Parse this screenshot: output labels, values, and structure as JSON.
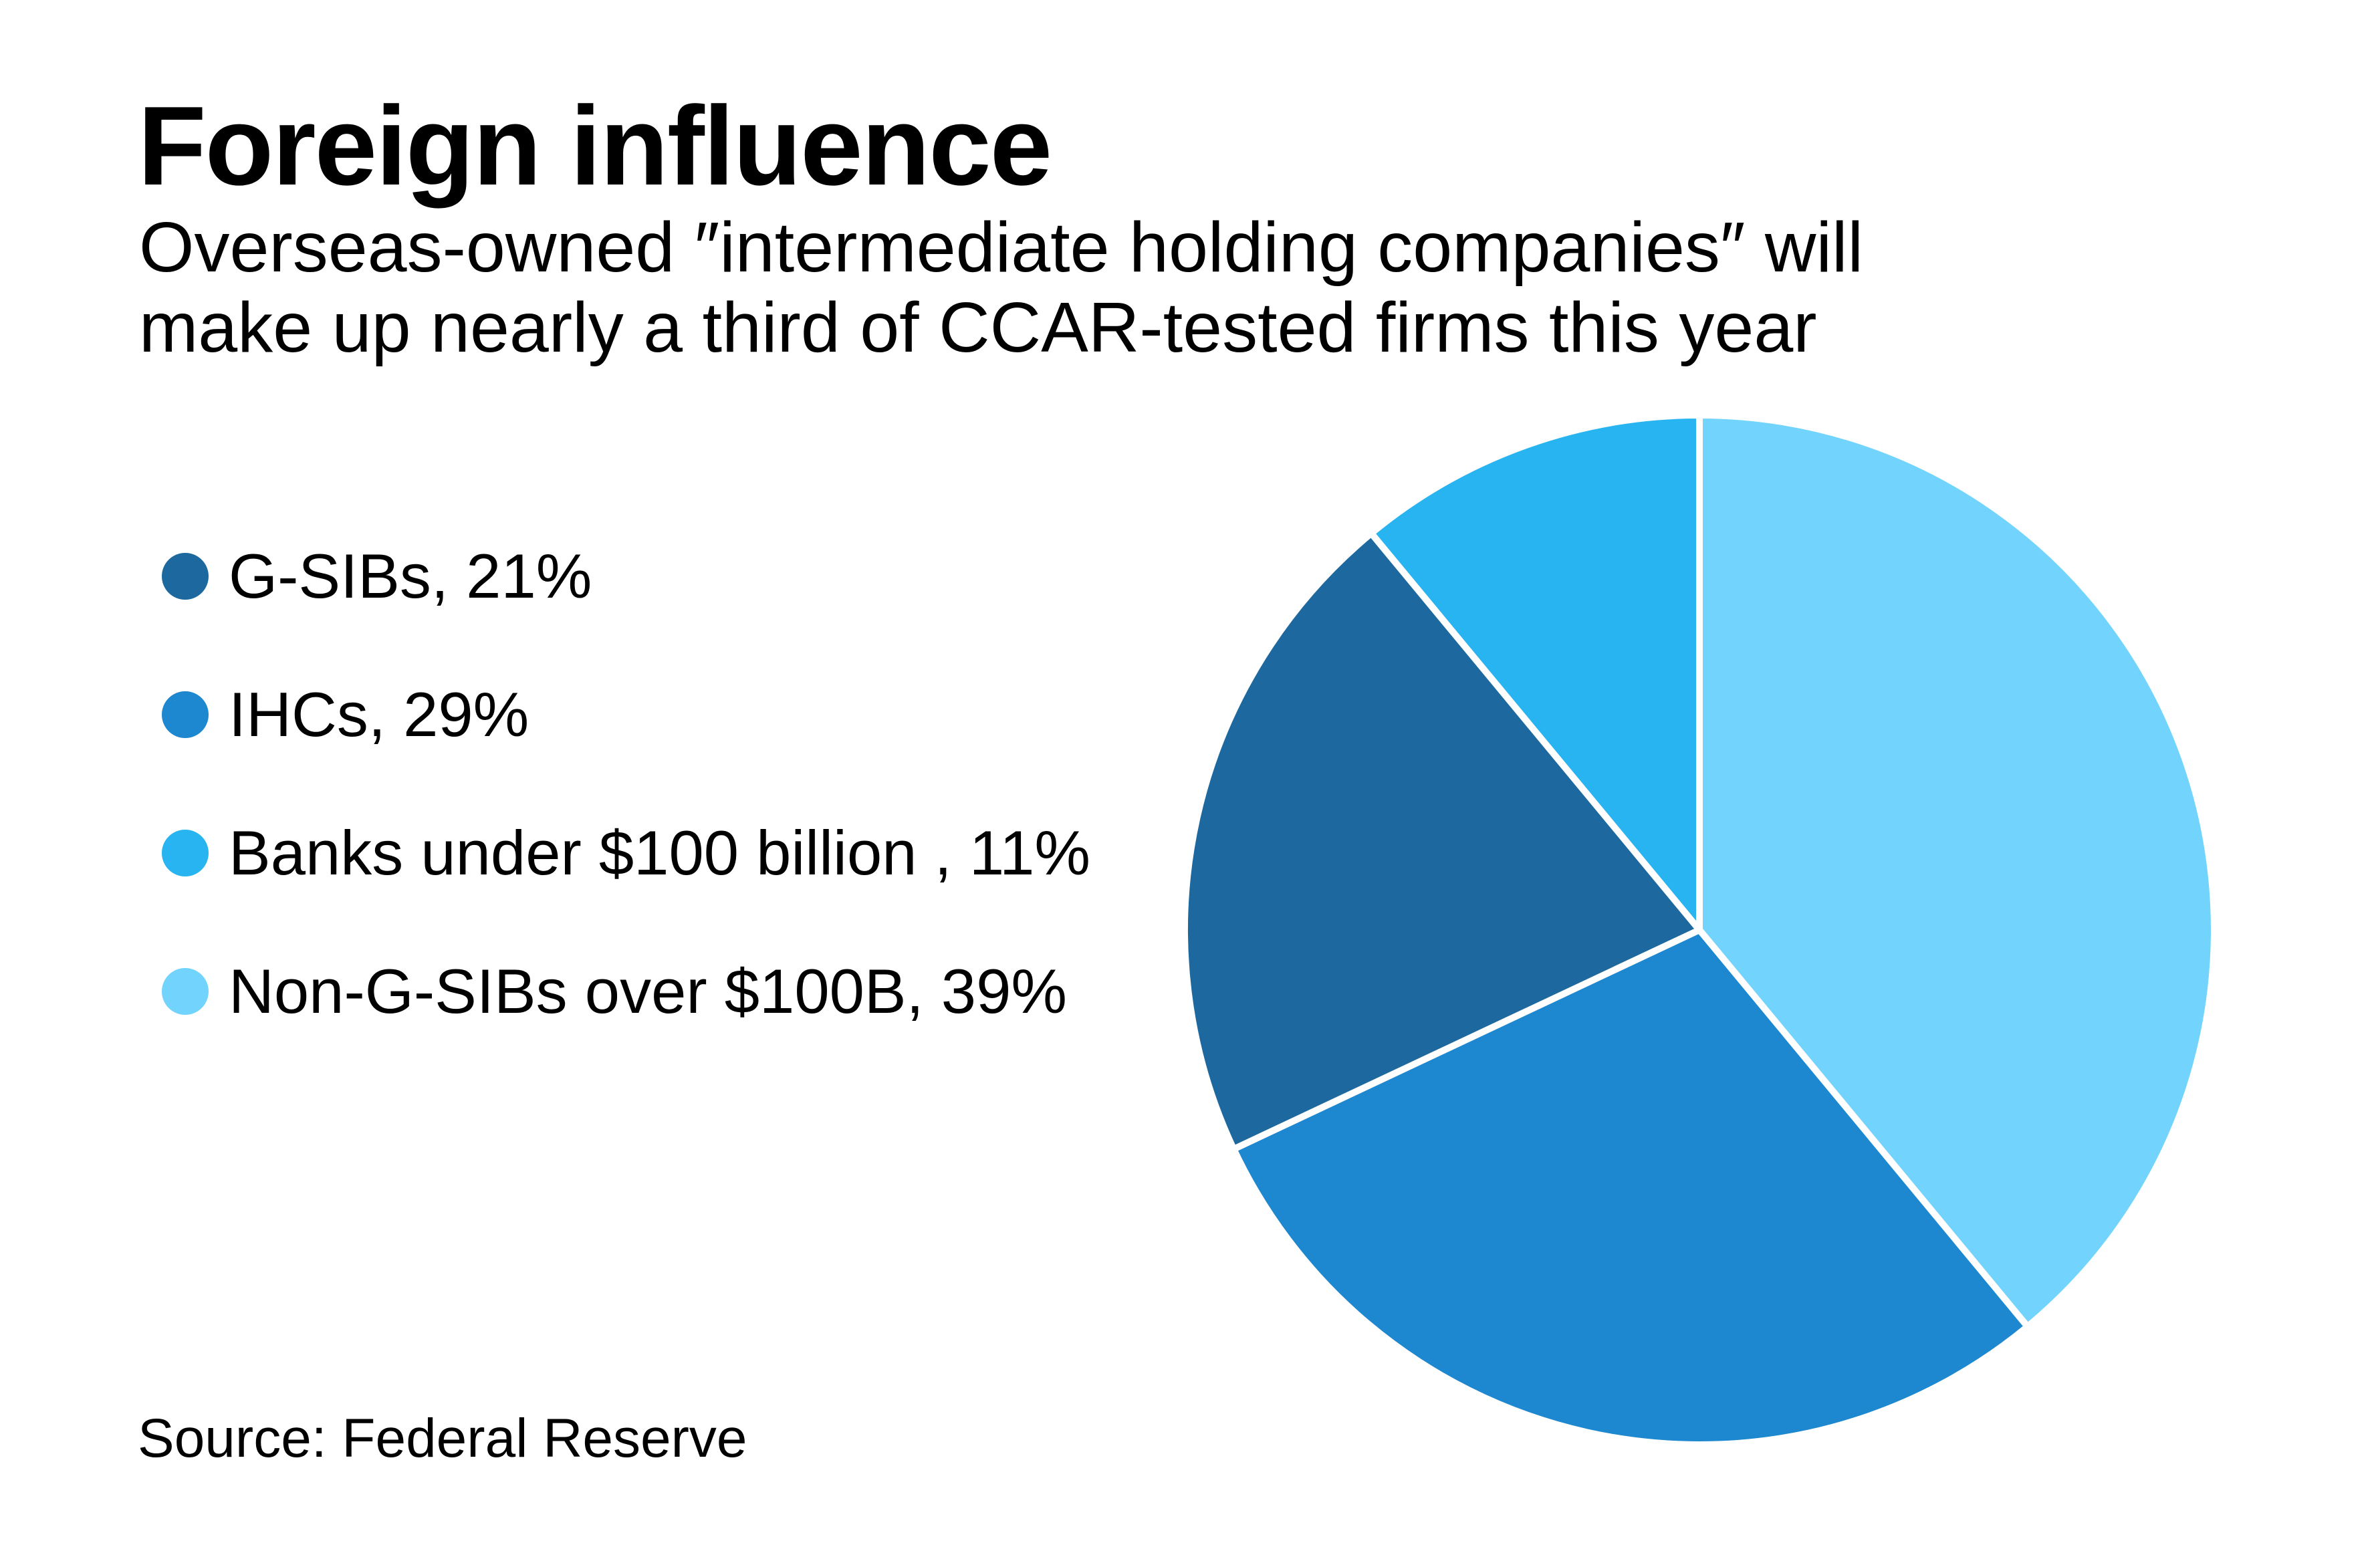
{
  "header": {
    "title": "Foreign influence",
    "subtitle_lines": [
      "Overseas-owned ″intermediate holding companies″ will",
      "make up nearly a third of CCAR-tested firms this year"
    ]
  },
  "footer": {
    "source": "Source: Federal Reserve"
  },
  "chart_data": {
    "type": "pie",
    "title": "Foreign influence",
    "subtitle": "Overseas-owned ″intermediate holding companies″ will make up nearly a third of CCAR-tested firms this year",
    "unit": "%",
    "start_angle": "12 o'clock",
    "direction": "clockwise",
    "legend_position": "left",
    "slice_order": [
      "Non-G-SIBs over $100B",
      "IHCs",
      "G-SIBs",
      "Banks under $100 billion"
    ],
    "legend": [
      {
        "label": "G-SIBs, 21%",
        "name": "G-SIBs",
        "value": 21,
        "color": "#1c689f"
      },
      {
        "label": "IHCs, 29%",
        "name": "IHCs",
        "value": 29,
        "color": "#1d87d0"
      },
      {
        "label": "Banks under $100 billion , 11%",
        "name": "Banks under $100 billion",
        "value": 11,
        "color": "#27b4f0"
      },
      {
        "label": "Non-G-SIBs over $100B, 39%",
        "name": "Non-G-SIBs over $100B",
        "value": 39,
        "color": "#72d4fd"
      }
    ],
    "separator_color": "#ffffff",
    "source": "Federal Reserve"
  }
}
